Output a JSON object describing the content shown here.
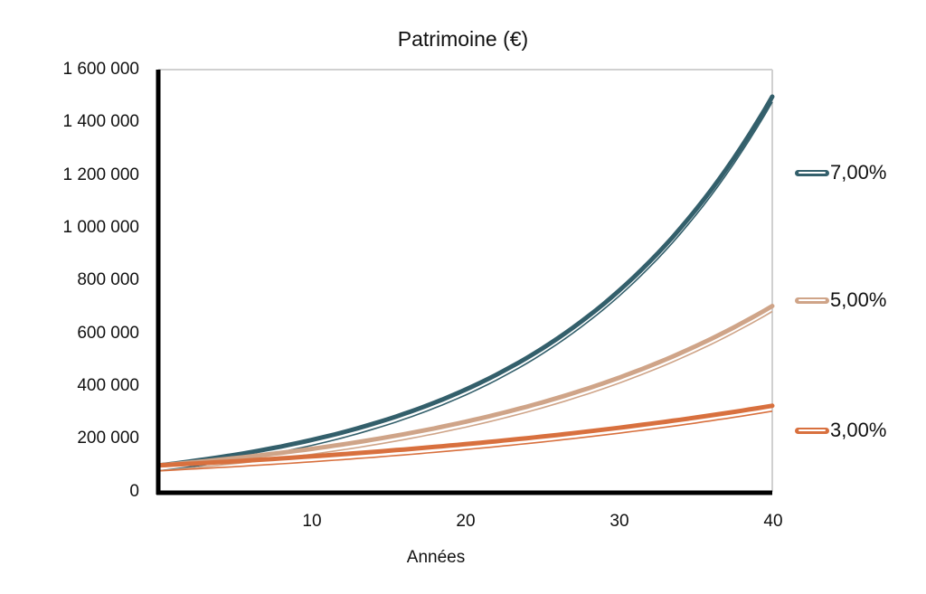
{
  "chart_data": {
    "type": "line",
    "title": "Patrimoine (€)",
    "xlabel": "Années",
    "ylabel": "",
    "xlim": [
      0,
      40
    ],
    "ylim": [
      0,
      1600000
    ],
    "grid": false,
    "legend_position": "right",
    "x_ticks": [
      "10",
      "20",
      "30",
      "40"
    ],
    "y_ticks": [
      "0",
      "200 000",
      "400 000",
      "600 000",
      "800 000",
      "1 000 000",
      "1 200 000",
      "1 400 000",
      "1 600 000"
    ],
    "x": [
      0,
      5,
      10,
      15,
      20,
      25,
      30,
      35,
      40
    ],
    "series": [
      {
        "name": "7,00%",
        "color": "#335f6b",
        "values": [
          100000,
          140255,
          196715,
          275903,
          386968,
          542743,
          761226,
          1067658,
          1497446
        ]
      },
      {
        "name": "5,00%",
        "color": "#cfa488",
        "values": [
          100000,
          127628,
          162889,
          207893,
          265330,
          338635,
          432194,
          551602,
          703999
        ]
      },
      {
        "name": "3,00%",
        "color": "#d8703e",
        "values": [
          100000,
          115927,
          134392,
          155797,
          180611,
          209378,
          242726,
          281386,
          326204
        ]
      }
    ]
  },
  "labels": {
    "title": "Patrimoine (€)",
    "xlabel": "Années",
    "yticks": [
      "1 600 000",
      "1 400 000",
      "1 200 000",
      "1 000 000",
      "800 000",
      "600 000",
      "400 000",
      "200 000",
      "0"
    ],
    "xticks": [
      "10",
      "20",
      "30",
      "40"
    ],
    "legend": [
      "7,00%",
      "5,00%",
      "3,00%"
    ]
  },
  "colors": {
    "rate_7": "#335f6b",
    "rate_5": "#cfa488",
    "rate_3": "#d8703e",
    "axis": "#000000",
    "frame": "#d0d0d0"
  }
}
